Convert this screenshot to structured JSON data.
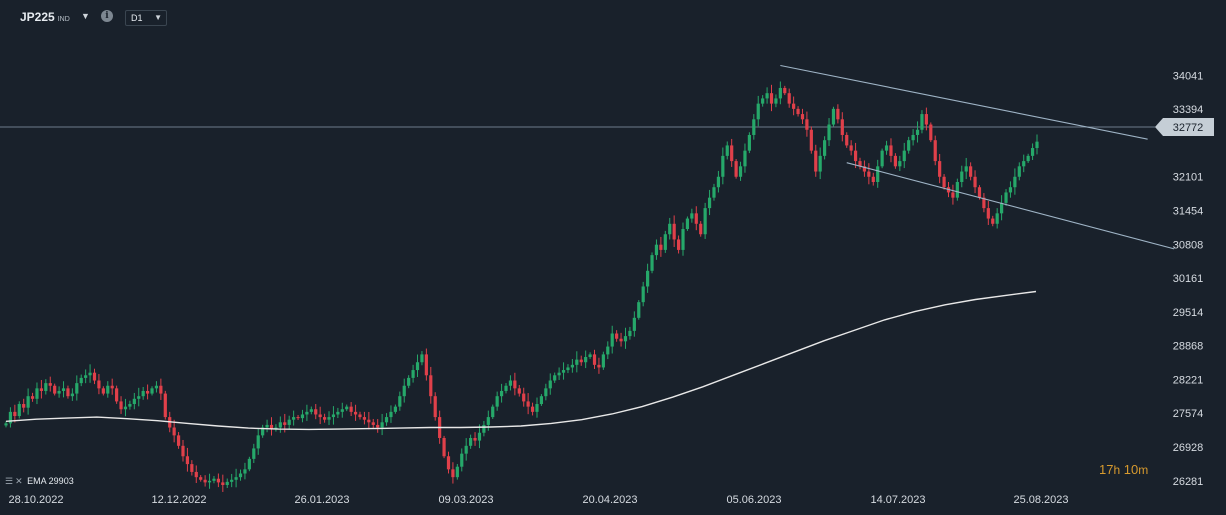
{
  "header": {
    "symbol": "JP225",
    "symbol_type": "IND",
    "timeframe": "D1",
    "dropdown_icon": "triangle-down-icon",
    "info_icon": "info-icon"
  },
  "indicator_legend": {
    "name": "EMA",
    "value": "29903",
    "icons": [
      "settings-icon",
      "close-icon"
    ]
  },
  "timer": {
    "hours": "17",
    "h_unit": "h",
    "minutes": "10",
    "m_unit": "m"
  },
  "colors": {
    "background": "#19212b",
    "up": "#26a86a",
    "down": "#e0404a",
    "ema": "#e8e8e8",
    "trendline": "#9fb4c6",
    "price_line": "#6d7c8b",
    "price_tag_bg": "#c5ced6",
    "timer": "#d79a2e"
  },
  "chart_data": {
    "type": "candlestick",
    "symbol": "JP225",
    "timeframe": "D1",
    "x_ticks": [
      "28.10.2022",
      "12.12.2022",
      "26.01.2023",
      "09.03.2023",
      "20.04.2023",
      "05.06.2023",
      "14.07.2023",
      "25.08.2023"
    ],
    "y_ticks": [
      34041,
      33394,
      32772,
      32101,
      31454,
      30808,
      30161,
      29514,
      28868,
      28221,
      27574,
      26928,
      26281
    ],
    "ylim": [
      26200,
      34450
    ],
    "current_price": 32772,
    "close_series": [
      27380,
      27600,
      27520,
      27750,
      27680,
      27900,
      27850,
      28050,
      28000,
      28150,
      28100,
      27950,
      28000,
      28050,
      27900,
      27950,
      28150,
      28250,
      28300,
      28350,
      28200,
      28050,
      27950,
      28100,
      28050,
      27800,
      27650,
      27700,
      27750,
      27850,
      27900,
      28000,
      27950,
      28050,
      28100,
      27950,
      27500,
      27300,
      27150,
      26950,
      26750,
      26600,
      26450,
      26350,
      26300,
      26250,
      26280,
      26320,
      26250,
      26200,
      26260,
      26300,
      26350,
      26420,
      26500,
      26700,
      26900,
      27150,
      27300,
      27350,
      27280,
      27300,
      27400,
      27350,
      27450,
      27500,
      27480,
      27550,
      27600,
      27650,
      27550,
      27500,
      27450,
      27500,
      27550,
      27600,
      27650,
      27700,
      27600,
      27550,
      27500,
      27450,
      27400,
      27350,
      27300,
      27400,
      27500,
      27600,
      27700,
      27900,
      28100,
      28250,
      28400,
      28550,
      28700,
      28300,
      27900,
      27500,
      27100,
      26750,
      26500,
      26350,
      26550,
      26800,
      26950,
      27100,
      27050,
      27200,
      27350,
      27500,
      27700,
      27900,
      28000,
      28100,
      28200,
      28050,
      27950,
      27800,
      27700,
      27600,
      27750,
      27900,
      28050,
      28200,
      28300,
      28350,
      28400,
      28450,
      28500,
      28600,
      28550,
      28650,
      28700,
      28500,
      28450,
      28700,
      28850,
      29100,
      29000,
      28950,
      29050,
      29150,
      29400,
      29700,
      30000,
      30300,
      30600,
      30800,
      30700,
      31000,
      31200,
      30900,
      30700,
      31100,
      31300,
      31400,
      31200,
      31000,
      31500,
      31700,
      31900,
      32100,
      32500,
      32700,
      32400,
      32100,
      32300,
      32600,
      32900,
      33200,
      33500,
      33600,
      33700,
      33500,
      33600,
      33800,
      33700,
      33500,
      33400,
      33300,
      33200,
      33000,
      32600,
      32200,
      32500,
      32800,
      33100,
      33400,
      33200,
      32900,
      32700,
      32600,
      32400,
      32300,
      32200,
      32100,
      32000,
      32300,
      32600,
      32700,
      32500,
      32300,
      32400,
      32600,
      32800,
      32900,
      33000,
      33300,
      33100,
      32800,
      32400,
      32100,
      31900,
      31800,
      31700,
      32000,
      32200,
      32300,
      32100,
      31900,
      31700,
      31500,
      31300,
      31200,
      31400,
      31600,
      31800,
      31900,
      32100,
      32300,
      32400,
      32500,
      32650,
      32772
    ],
    "ema": {
      "name": "EMA",
      "last_value": 29903,
      "values": [
        27420,
        27460,
        27480,
        27500,
        27470,
        27430,
        27380,
        27330,
        27290,
        27270,
        27265,
        27270,
        27280,
        27290,
        27300,
        27300,
        27310,
        27330,
        27380,
        27450,
        27560,
        27700,
        27880,
        28080,
        28300,
        28520,
        28740,
        28960,
        29160,
        29360,
        29520,
        29650,
        29750,
        29830,
        29903
      ]
    },
    "trendlines": [
      {
        "name": "upper-channel",
        "from": [
          175,
          34230
        ],
        "to": [
          258,
          32820
        ]
      },
      {
        "name": "lower-channel",
        "from": [
          190,
          32370
        ],
        "to": [
          264,
          30720
        ]
      }
    ]
  }
}
